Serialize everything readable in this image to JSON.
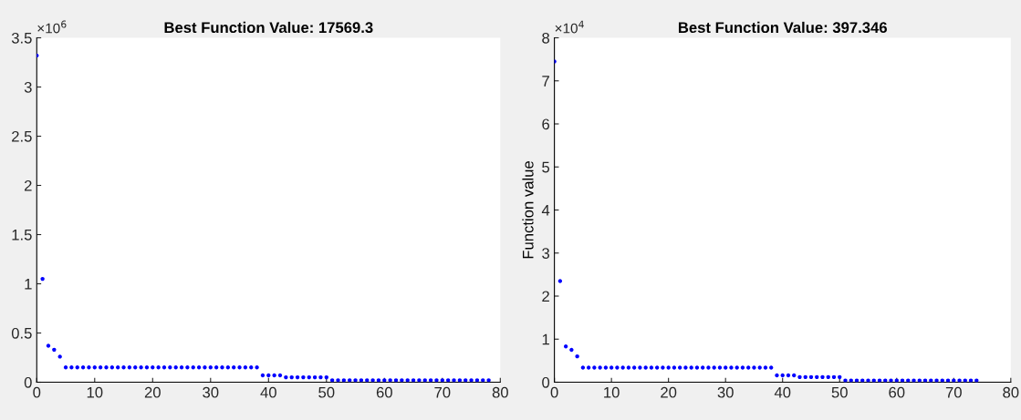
{
  "chart_data": [
    {
      "type": "scatter",
      "title": "Best Function Value: 17569.3",
      "annotations": [
        "×10$^{6}$"
      ],
      "marker": "circle",
      "grid": false,
      "legend": false,
      "xlim": [
        0,
        80
      ],
      "xticks": [
        0,
        10,
        20,
        30,
        40,
        50,
        60,
        70,
        80
      ],
      "ylim": [
        0,
        3.5
      ],
      "yticks": [
        0,
        0.5,
        1,
        1.5,
        2,
        2.5,
        3,
        3.5
      ],
      "series": [
        {
          "color": "#0000ff",
          "x": [
            0,
            1,
            2,
            3,
            4,
            5,
            6,
            7,
            8,
            9,
            10,
            11,
            12,
            13,
            14,
            15,
            16,
            17,
            18,
            19,
            20,
            21,
            22,
            23,
            24,
            25,
            26,
            27,
            28,
            29,
            30,
            31,
            32,
            33,
            34,
            35,
            36,
            37,
            38,
            39,
            40,
            41,
            42,
            43,
            44,
            45,
            46,
            47,
            48,
            49,
            50,
            51,
            52,
            53,
            54,
            55,
            56,
            57,
            58,
            59,
            60,
            61,
            62,
            63,
            64,
            65,
            66,
            67,
            68,
            69,
            70,
            71,
            72,
            73,
            74,
            75,
            76,
            77,
            78
          ],
          "values": [
            3.32,
            1.05,
            0.37,
            0.33,
            0.26,
            0.15,
            0.15,
            0.15,
            0.15,
            0.15,
            0.15,
            0.15,
            0.15,
            0.15,
            0.15,
            0.15,
            0.15,
            0.15,
            0.15,
            0.15,
            0.15,
            0.15,
            0.15,
            0.15,
            0.15,
            0.15,
            0.15,
            0.15,
            0.15,
            0.15,
            0.15,
            0.15,
            0.15,
            0.15,
            0.15,
            0.15,
            0.15,
            0.15,
            0.15,
            0.07,
            0.07,
            0.07,
            0.07,
            0.05,
            0.05,
            0.05,
            0.05,
            0.05,
            0.05,
            0.05,
            0.05,
            0.02,
            0.02,
            0.02,
            0.02,
            0.02,
            0.02,
            0.02,
            0.02,
            0.02,
            0.02,
            0.02,
            0.02,
            0.02,
            0.02,
            0.02,
            0.02,
            0.02,
            0.02,
            0.02,
            0.02,
            0.02,
            0.02,
            0.02,
            0.02,
            0.02,
            0.02,
            0.02,
            0.02
          ]
        }
      ]
    },
    {
      "type": "scatter",
      "title": "Best Function Value: 397.346",
      "ylabel": "Function value",
      "annotations": [
        "×10$^{4}$"
      ],
      "marker": "circle",
      "grid": false,
      "legend": false,
      "xlim": [
        0,
        80
      ],
      "xticks": [
        0,
        10,
        20,
        30,
        40,
        50,
        60,
        70,
        80
      ],
      "ylim": [
        0,
        8
      ],
      "yticks": [
        0,
        1,
        2,
        3,
        4,
        5,
        6,
        7,
        8
      ],
      "series": [
        {
          "color": "#0000ff",
          "x": [
            0,
            1,
            2,
            3,
            4,
            5,
            6,
            7,
            8,
            9,
            10,
            11,
            12,
            13,
            14,
            15,
            16,
            17,
            18,
            19,
            20,
            21,
            22,
            23,
            24,
            25,
            26,
            27,
            28,
            29,
            30,
            31,
            32,
            33,
            34,
            35,
            36,
            37,
            38,
            39,
            40,
            41,
            42,
            43,
            44,
            45,
            46,
            47,
            48,
            49,
            50,
            51,
            52,
            53,
            54,
            55,
            56,
            57,
            58,
            59,
            60,
            61,
            62,
            63,
            64,
            65,
            66,
            67,
            68,
            69,
            70,
            71,
            72,
            73,
            74
          ],
          "values": [
            7.45,
            2.35,
            0.83,
            0.75,
            0.6,
            0.34,
            0.34,
            0.34,
            0.34,
            0.34,
            0.34,
            0.34,
            0.34,
            0.34,
            0.34,
            0.34,
            0.34,
            0.34,
            0.34,
            0.34,
            0.34,
            0.34,
            0.34,
            0.34,
            0.34,
            0.34,
            0.34,
            0.34,
            0.34,
            0.34,
            0.34,
            0.34,
            0.34,
            0.34,
            0.34,
            0.34,
            0.34,
            0.34,
            0.34,
            0.16,
            0.16,
            0.16,
            0.16,
            0.12,
            0.12,
            0.12,
            0.12,
            0.12,
            0.12,
            0.12,
            0.12,
            0.04,
            0.04,
            0.04,
            0.04,
            0.04,
            0.04,
            0.04,
            0.04,
            0.04,
            0.04,
            0.04,
            0.04,
            0.04,
            0.04,
            0.04,
            0.04,
            0.04,
            0.04,
            0.04,
            0.04,
            0.04,
            0.04,
            0.04,
            0.04
          ]
        }
      ]
    }
  ]
}
